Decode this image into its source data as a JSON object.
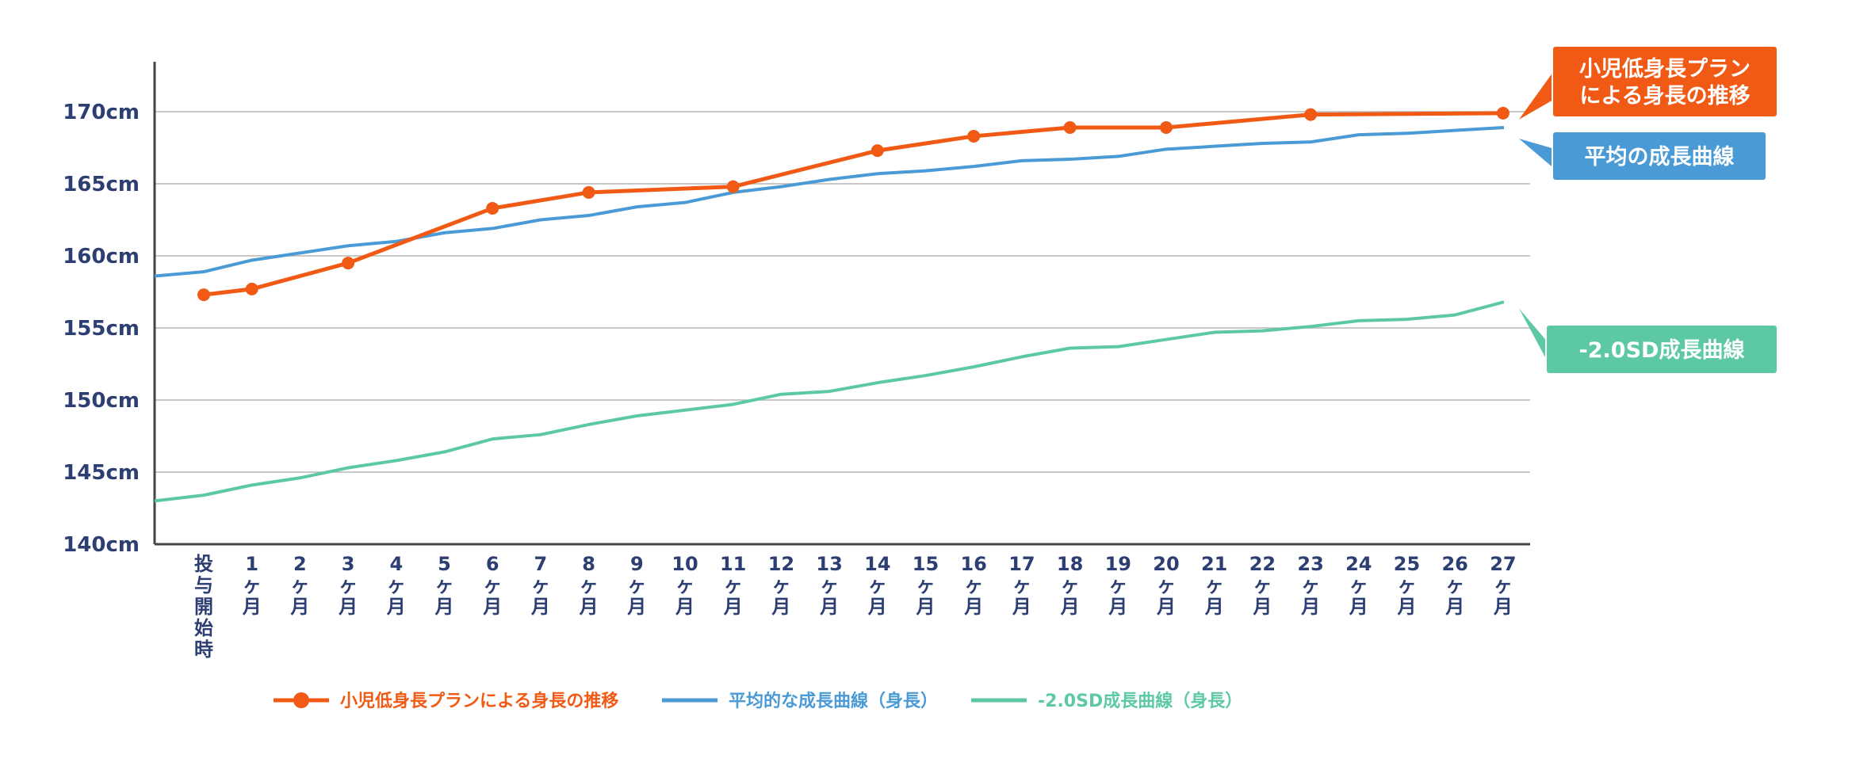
{
  "chart_data": {
    "type": "line",
    "ylim": [
      140,
      173
    ],
    "y_ticks": [
      "140cm",
      "145cm",
      "150cm",
      "155cm",
      "160cm",
      "165cm",
      "170cm"
    ],
    "y_tick_values": [
      140,
      145,
      150,
      155,
      160,
      165,
      170
    ],
    "categories": [
      "投与開始時",
      "1ヶ月",
      "2ヶ月",
      "3ヶ月",
      "4ヶ月",
      "5ヶ月",
      "6ヶ月",
      "7ヶ月",
      "8ヶ月",
      "9ヶ月",
      "10ヶ月",
      "11ヶ月",
      "12ヶ月",
      "13ヶ月",
      "14ヶ月",
      "15ヶ月",
      "16ヶ月",
      "17ヶ月",
      "18ヶ月",
      "19ヶ月",
      "20ヶ月",
      "21ヶ月",
      "22ヶ月",
      "23ヶ月",
      "24ヶ月",
      "25ヶ月",
      "26ヶ月",
      "27ヶ月"
    ],
    "x_tick_labels": [
      [
        "投",
        "与",
        "開",
        "始",
        "時"
      ],
      [
        "1",
        "ヶ",
        "月"
      ],
      [
        "2",
        "ヶ",
        "月"
      ],
      [
        "3",
        "ヶ",
        "月"
      ],
      [
        "4",
        "ヶ",
        "月"
      ],
      [
        "5",
        "ヶ",
        "月"
      ],
      [
        "6",
        "ヶ",
        "月"
      ],
      [
        "7",
        "ヶ",
        "月"
      ],
      [
        "8",
        "ヶ",
        "月"
      ],
      [
        "9",
        "ヶ",
        "月"
      ],
      [
        "10",
        "ヶ",
        "月"
      ],
      [
        "11",
        "ヶ",
        "月"
      ],
      [
        "12",
        "ヶ",
        "月"
      ],
      [
        "13",
        "ヶ",
        "月"
      ],
      [
        "14",
        "ヶ",
        "月"
      ],
      [
        "15",
        "ヶ",
        "月"
      ],
      [
        "16",
        "ヶ",
        "月"
      ],
      [
        "17",
        "ヶ",
        "月"
      ],
      [
        "18",
        "ヶ",
        "月"
      ],
      [
        "19",
        "ヶ",
        "月"
      ],
      [
        "20",
        "ヶ",
        "月"
      ],
      [
        "21",
        "ヶ",
        "月"
      ],
      [
        "22",
        "ヶ",
        "月"
      ],
      [
        "23",
        "ヶ",
        "月"
      ],
      [
        "24",
        "ヶ",
        "月"
      ],
      [
        "25",
        "ヶ",
        "月"
      ],
      [
        "26",
        "ヶ",
        "月"
      ],
      [
        "27",
        "ヶ",
        "月"
      ]
    ],
    "grid": true,
    "series": [
      {
        "name": "小児低身長プランによる身長の推移",
        "color": "#f05a14",
        "markers": true,
        "x": [
          0,
          1,
          3,
          6,
          8,
          11,
          14,
          16,
          18,
          20,
          23,
          27
        ],
        "values": [
          157.3,
          157.7,
          159.5,
          163.3,
          164.4,
          164.8,
          167.3,
          168.3,
          168.9,
          168.9,
          169.8,
          169.9
        ]
      },
      {
        "name": "平均的な成長曲線（身長）",
        "color": "#4a9ad6",
        "markers": false,
        "x": [
          -1,
          0,
          1,
          2,
          3,
          4,
          5,
          6,
          7,
          8,
          9,
          10,
          11,
          12,
          13,
          14,
          15,
          16,
          17,
          18,
          19,
          20,
          21,
          22,
          23,
          24,
          25,
          26,
          27
        ],
        "values": [
          158.6,
          158.9,
          159.7,
          160.2,
          160.7,
          161.0,
          161.6,
          161.9,
          162.5,
          162.8,
          163.4,
          163.7,
          164.4,
          164.8,
          165.3,
          165.7,
          165.9,
          166.2,
          166.6,
          166.7,
          166.9,
          167.4,
          167.6,
          167.8,
          167.9,
          168.4,
          168.5,
          168.7,
          168.9
        ]
      },
      {
        "name": "-2.0SD成長曲線（身長）",
        "color": "#5cc9a3",
        "markers": false,
        "x": [
          -1,
          0,
          1,
          2,
          3,
          4,
          5,
          6,
          7,
          8,
          9,
          10,
          11,
          12,
          13,
          14,
          15,
          16,
          17,
          18,
          19,
          20,
          21,
          22,
          23,
          24,
          25,
          26,
          27
        ],
        "values": [
          143.0,
          143.4,
          144.1,
          144.6,
          145.3,
          145.8,
          146.4,
          147.3,
          147.6,
          148.3,
          148.9,
          149.3,
          149.7,
          150.4,
          150.6,
          151.2,
          151.7,
          152.3,
          153.0,
          153.6,
          153.7,
          154.2,
          154.7,
          154.8,
          155.1,
          155.5,
          155.6,
          155.9,
          156.8
        ]
      }
    ],
    "callouts": [
      {
        "lines": [
          "小児低身長プラン",
          "による身長の推移"
        ],
        "color": "#f05a14",
        "series": 0
      },
      {
        "lines": [
          "平均の成長曲線"
        ],
        "color": "#4a9ad6",
        "series": 1
      },
      {
        "lines": [
          "-2.0SD成長曲線"
        ],
        "color": "#5cc9a3",
        "series": 2
      }
    ],
    "legend": {
      "placement": "bottom-left",
      "entries": [
        {
          "label": "小児低身長プランによる身長の推移",
          "color": "#f05a14",
          "marker": true
        },
        {
          "label": "平均的な成長曲線（身長）",
          "color": "#4a9ad6",
          "marker": false
        },
        {
          "label": "-2.0SD成長曲線（身長）",
          "color": "#5cc9a3",
          "marker": false
        }
      ]
    }
  }
}
